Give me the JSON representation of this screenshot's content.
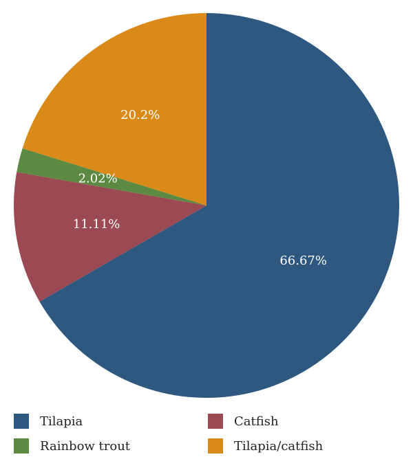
{
  "chart_data": {
    "type": "pie",
    "title": "",
    "start_angle_deg": 0,
    "direction": "clockwise",
    "slices": [
      {
        "name": "Tilapia",
        "value": 66.67,
        "label": "66.67%",
        "color": "#2e587f"
      },
      {
        "name": "Catfish",
        "value": 11.11,
        "label": "11.11%",
        "color": "#9b4a53"
      },
      {
        "name": "Rainbow trout",
        "value": 2.02,
        "label": "2.02%",
        "color": "#5c8a42"
      },
      {
        "name": "Tilapia/catfish",
        "value": 20.2,
        "label": "20.2%",
        "color": "#d98a19"
      }
    ],
    "legend": {
      "placement": "bottom",
      "order": [
        "Tilapia",
        "Catfish",
        "Rainbow trout",
        "Tilapia/catfish"
      ]
    }
  }
}
